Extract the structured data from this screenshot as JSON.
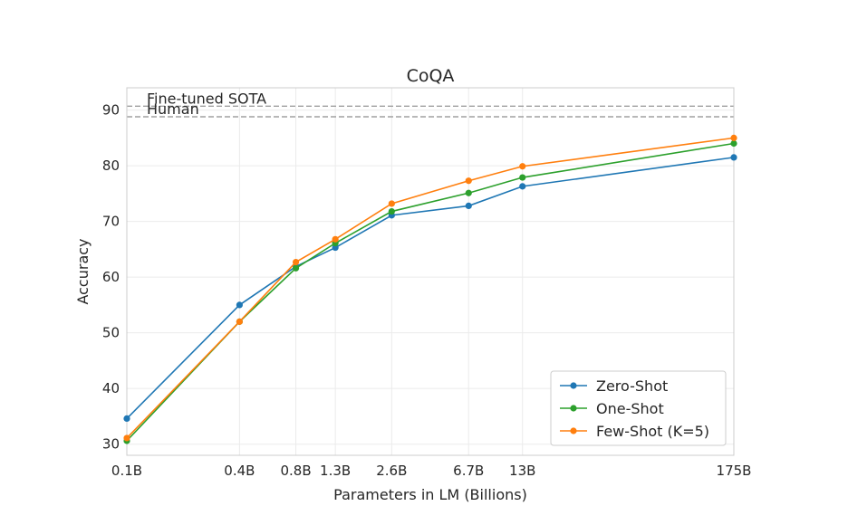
{
  "chart_data": {
    "type": "line",
    "title": "CoQA",
    "xlabel": "Parameters in LM (Billions)",
    "ylabel": "Accuracy",
    "x_scale": "log",
    "x": [
      0.1,
      0.4,
      0.8,
      1.3,
      2.6,
      6.7,
      13,
      175
    ],
    "x_tick_labels": [
      "0.1B",
      "0.4B",
      "0.8B",
      "1.3B",
      "2.6B",
      "6.7B",
      "13B",
      "175B"
    ],
    "xlim": [
      0.1,
      175
    ],
    "ylim": [
      28,
      94
    ],
    "y_ticks": [
      30,
      40,
      50,
      60,
      70,
      80,
      90
    ],
    "grid": true,
    "legend_position": "lower-right",
    "series": [
      {
        "name": "Zero-Shot",
        "color": "#1f77b4",
        "values": [
          34.6,
          55.0,
          61.9,
          65.3,
          71.1,
          72.8,
          76.3,
          81.5
        ]
      },
      {
        "name": "One-Shot",
        "color": "#2ca02c",
        "values": [
          30.6,
          52.0,
          61.6,
          66.1,
          71.8,
          75.1,
          77.9,
          84.0
        ]
      },
      {
        "name": "Few-Shot (K=5)",
        "color": "#ff7f0e",
        "values": [
          31.1,
          52.0,
          62.7,
          66.8,
          73.2,
          77.3,
          79.9,
          85.0
        ]
      }
    ],
    "reference_lines": [
      {
        "label": "Fine-tuned SOTA",
        "value": 90.7,
        "color": "#a0a0a0"
      },
      {
        "label": "Human",
        "value": 88.8,
        "color": "#a0a0a0"
      }
    ]
  }
}
